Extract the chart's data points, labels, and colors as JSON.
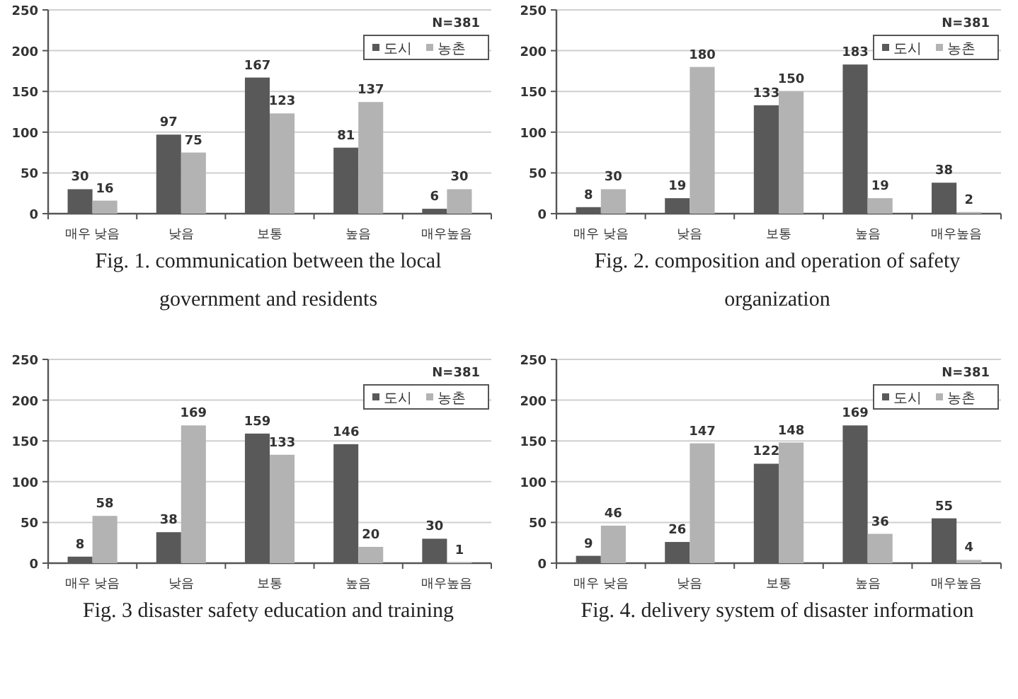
{
  "chart_data": [
    {
      "type": "bar",
      "title": "Fig. 1. communication between the local government and residents",
      "categories": [
        "매우 낮음",
        "낮음",
        "보통",
        "높음",
        "매우높음"
      ],
      "series": [
        {
          "name": "도시",
          "color": "#595959",
          "values": [
            30,
            97,
            167,
            81,
            6
          ]
        },
        {
          "name": "농촌",
          "color": "#b3b3b3",
          "values": [
            16,
            75,
            123,
            137,
            30
          ]
        }
      ],
      "ylim": [
        0,
        250
      ],
      "yticks": [
        0,
        50,
        100,
        150,
        200,
        250
      ],
      "grid": "y",
      "legend": "top right",
      "data_labels": true,
      "annotations": [
        "N=381"
      ]
    },
    {
      "type": "bar",
      "title": "Fig. 2. composition and operation of safety organization",
      "categories": [
        "매우 낮음",
        "낮음",
        "보통",
        "높음",
        "매우높음"
      ],
      "series": [
        {
          "name": "도시",
          "color": "#595959",
          "values": [
            8,
            19,
            133,
            183,
            38
          ]
        },
        {
          "name": "농촌",
          "color": "#b3b3b3",
          "values": [
            30,
            180,
            150,
            19,
            2
          ]
        }
      ],
      "ylim": [
        0,
        250
      ],
      "yticks": [
        0,
        50,
        100,
        150,
        200,
        250
      ],
      "grid": "y",
      "legend": "top right",
      "data_labels": true,
      "annotations": [
        "N=381"
      ]
    },
    {
      "type": "bar",
      "title": "Fig. 3 disaster safety education and training",
      "categories": [
        "매우 낮음",
        "낮음",
        "보통",
        "높음",
        "매우높음"
      ],
      "series": [
        {
          "name": "도시",
          "color": "#595959",
          "values": [
            8,
            38,
            159,
            146,
            30
          ]
        },
        {
          "name": "농촌",
          "color": "#b3b3b3",
          "values": [
            58,
            169,
            133,
            20,
            1
          ]
        }
      ],
      "ylim": [
        0,
        250
      ],
      "yticks": [
        0,
        50,
        100,
        150,
        200,
        250
      ],
      "grid": "y",
      "legend": "top right",
      "data_labels": true,
      "annotations": [
        "N=381"
      ]
    },
    {
      "type": "bar",
      "title": "Fig. 4. delivery system of disaster information",
      "categories": [
        "매우 낮음",
        "낮음",
        "보통",
        "높음",
        "매우높음"
      ],
      "series": [
        {
          "name": "도시",
          "color": "#595959",
          "values": [
            9,
            26,
            122,
            169,
            55
          ]
        },
        {
          "name": "농촌",
          "color": "#b3b3b3",
          "values": [
            46,
            147,
            148,
            36,
            4
          ]
        }
      ],
      "ylim": [
        0,
        250
      ],
      "yticks": [
        0,
        50,
        100,
        150,
        200,
        250
      ],
      "grid": "y",
      "legend": "top right",
      "data_labels": true,
      "annotations": [
        "N=381"
      ]
    }
  ]
}
